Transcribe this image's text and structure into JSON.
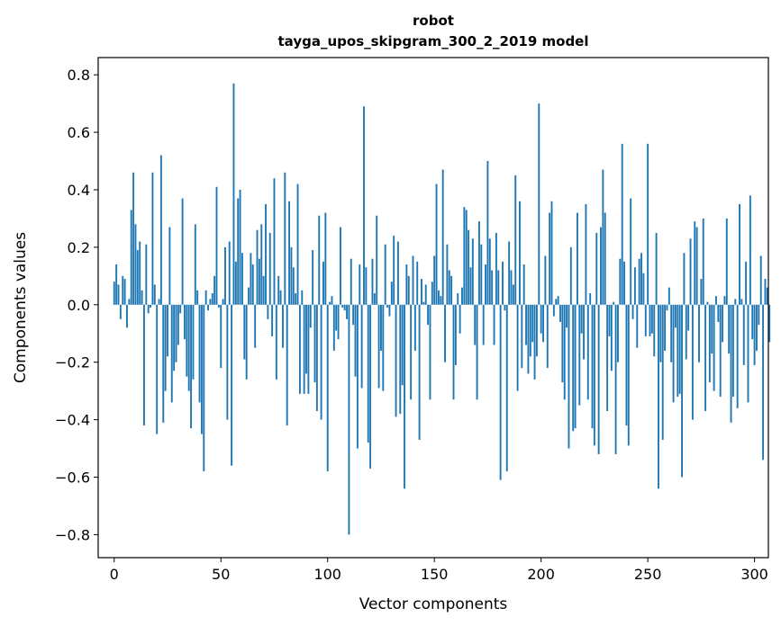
{
  "chart_data": {
    "type": "bar",
    "title": "robot",
    "subtitle": "tayga_upos_skipgram_300_2_2019 model",
    "xlabel": "Vector components",
    "ylabel": "Components values",
    "xlim": [
      -7.5,
      306.5
    ],
    "ylim": [
      -0.88,
      0.86
    ],
    "xticks": [
      0,
      50,
      100,
      150,
      200,
      250,
      300
    ],
    "yticks": [
      -0.8,
      -0.6,
      -0.4,
      -0.2,
      0.0,
      0.2,
      0.4,
      0.6,
      0.8
    ],
    "ytick_labels": [
      "−0.8",
      "−0.6",
      "−0.4",
      "−0.2",
      "0.0",
      "0.2",
      "0.4",
      "0.6",
      "0.8"
    ],
    "grid": false,
    "bar_color": "#1f77b4",
    "values": [
      0.08,
      0.14,
      0.07,
      -0.05,
      0.1,
      0.09,
      -0.08,
      0.02,
      0.33,
      0.46,
      0.28,
      0.19,
      0.22,
      0.05,
      -0.42,
      0.21,
      -0.03,
      -0.01,
      0.46,
      0.07,
      -0.45,
      0.02,
      0.52,
      -0.41,
      -0.3,
      -0.18,
      0.27,
      -0.34,
      -0.23,
      -0.2,
      -0.14,
      -0.03,
      0.37,
      -0.12,
      -0.25,
      -0.3,
      -0.43,
      -0.26,
      0.28,
      0.05,
      -0.34,
      -0.45,
      -0.58,
      0.05,
      -0.02,
      0.02,
      0.04,
      0.1,
      0.41,
      -0.01,
      -0.22,
      0.02,
      0.2,
      -0.4,
      0.22,
      -0.56,
      0.77,
      0.15,
      0.37,
      0.4,
      0.18,
      -0.19,
      -0.26,
      0.06,
      0.18,
      0.14,
      -0.15,
      0.26,
      0.16,
      0.28,
      0.1,
      0.35,
      -0.05,
      0.25,
      -0.11,
      0.44,
      -0.26,
      0.1,
      0.05,
      -0.15,
      0.46,
      -0.42,
      0.36,
      0.2,
      0.13,
      0.04,
      0.42,
      -0.31,
      0.05,
      -0.31,
      -0.24,
      -0.31,
      -0.08,
      0.19,
      -0.27,
      -0.37,
      0.31,
      -0.4,
      0.15,
      0.32,
      -0.58,
      0.01,
      0.03,
      -0.16,
      -0.09,
      -0.12,
      0.27,
      -0.01,
      -0.02,
      -0.05,
      -0.8,
      0.16,
      -0.07,
      -0.25,
      -0.5,
      0.14,
      -0.29,
      0.69,
      0.13,
      -0.48,
      -0.57,
      0.16,
      0.04,
      0.31,
      -0.29,
      -0.16,
      -0.3,
      0.21,
      -0.01,
      -0.04,
      0.08,
      0.24,
      -0.39,
      0.22,
      -0.38,
      -0.28,
      -0.64,
      0.14,
      0.1,
      -0.33,
      0.17,
      -0.16,
      0.15,
      -0.47,
      0.09,
      0.01,
      0.07,
      -0.07,
      -0.33,
      0.08,
      0.17,
      0.42,
      0.05,
      0.03,
      0.47,
      -0.2,
      0.21,
      0.12,
      0.1,
      -0.33,
      -0.21,
      0.04,
      -0.1,
      0.06,
      0.34,
      0.33,
      0.26,
      0.13,
      0.23,
      -0.14,
      -0.33,
      0.29,
      0.21,
      -0.14,
      0.14,
      0.5,
      0.23,
      0.12,
      -0.14,
      0.25,
      0.12,
      -0.61,
      0.15,
      -0.02,
      -0.58,
      0.22,
      0.12,
      0.07,
      0.45,
      -0.3,
      0.36,
      -0.22,
      0.14,
      -0.14,
      -0.24,
      -0.18,
      -0.13,
      -0.26,
      -0.18,
      0.7,
      -0.1,
      -0.13,
      0.17,
      -0.22,
      0.32,
      0.36,
      -0.04,
      0.02,
      0.03,
      -0.06,
      -0.27,
      -0.33,
      -0.08,
      -0.5,
      0.2,
      -0.44,
      -0.43,
      0.32,
      -0.35,
      -0.1,
      -0.19,
      0.35,
      -0.33,
      0.04,
      -0.43,
      -0.49,
      0.25,
      -0.52,
      0.27,
      0.47,
      0.32,
      -0.37,
      -0.11,
      -0.23,
      0.01,
      -0.52,
      -0.2,
      0.16,
      0.56,
      0.15,
      -0.42,
      -0.49,
      0.37,
      -0.05,
      0.13,
      -0.15,
      0.16,
      0.18,
      0.11,
      -0.11,
      0.56,
      -0.11,
      -0.1,
      -0.18,
      0.25,
      -0.64,
      -0.2,
      -0.47,
      -0.16,
      -0.02,
      0.06,
      -0.2,
      -0.34,
      -0.08,
      -0.32,
      -0.31,
      -0.6,
      0.18,
      -0.19,
      -0.09,
      0.23,
      -0.4,
      0.29,
      0.27,
      -0.2,
      0.09,
      0.3,
      -0.37,
      0.01,
      -0.27,
      -0.17,
      -0.3,
      0.03,
      -0.06,
      -0.32,
      -0.13,
      0.03,
      0.3,
      -0.17,
      -0.41,
      -0.32,
      0.02,
      -0.36,
      0.35,
      0.02,
      -0.21,
      0.15,
      -0.34,
      0.38,
      -0.12,
      -0.21,
      -0.16,
      -0.07,
      0.17,
      -0.54,
      0.09,
      0.06,
      -0.13
    ]
  }
}
